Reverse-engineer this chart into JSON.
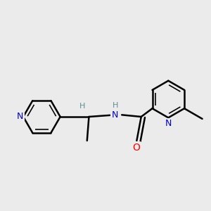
{
  "bg_color": "#ebebeb",
  "bond_color": "#000000",
  "bond_width": 1.8,
  "atom_colors": {
    "N": "#0000cc",
    "O": "#ff0000",
    "H": "#5a9090",
    "C": "#000000"
  },
  "font_size": 8.5,
  "fig_size": [
    3.0,
    3.0
  ],
  "dpi": 100
}
